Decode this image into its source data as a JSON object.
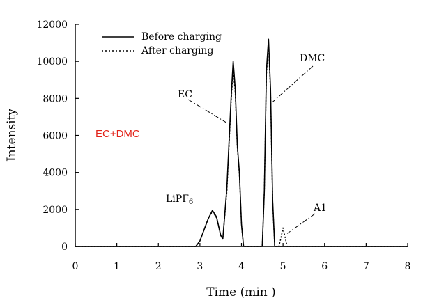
{
  "chart_data": {
    "type": "line",
    "xlabel": "Time (min )",
    "ylabel": "Intensity",
    "xlim": [
      0,
      8
    ],
    "ylim": [
      0,
      12000
    ],
    "xticks": [
      "0",
      "1",
      "2",
      "3",
      "4",
      "5",
      "6",
      "7",
      "8"
    ],
    "yticks": [
      "0",
      "2000",
      "4000",
      "6000",
      "8000",
      "10000",
      "12000"
    ],
    "grid": false,
    "legend_position": "top-left",
    "inset_text": "EC+DMC",
    "inset_color": "#e2231a",
    "series": [
      {
        "name": "Before charging",
        "style": "solid",
        "x": [
          0.0,
          2.9,
          3.0,
          3.1,
          3.2,
          3.3,
          3.4,
          3.5,
          3.55,
          3.65,
          3.75,
          3.8,
          3.85,
          3.9,
          3.95,
          4.0,
          4.05,
          4.1,
          4.5,
          4.55,
          4.6,
          4.65,
          4.7,
          4.75,
          4.8,
          5.0,
          8.0
        ],
        "y": [
          0,
          0,
          300,
          900,
          1500,
          1950,
          1600,
          600,
          400,
          3200,
          8000,
          10000,
          8500,
          5500,
          4000,
          1200,
          0,
          0,
          0,
          3000,
          9500,
          11200,
          8500,
          2500,
          0,
          0,
          0
        ]
      },
      {
        "name": "After charging",
        "style": "dotted",
        "x": [
          0.0,
          2.9,
          3.0,
          3.1,
          3.2,
          3.3,
          3.4,
          3.5,
          3.55,
          3.65,
          3.75,
          3.8,
          3.85,
          3.9,
          3.95,
          4.0,
          4.05,
          4.1,
          4.5,
          4.55,
          4.6,
          4.65,
          4.7,
          4.75,
          4.8,
          4.9,
          4.95,
          5.0,
          5.05,
          5.1,
          5.2,
          8.0
        ],
        "y": [
          0,
          0,
          300,
          900,
          1500,
          1900,
          1550,
          600,
          400,
          3000,
          7800,
          9600,
          8300,
          5400,
          3900,
          1200,
          0,
          0,
          0,
          3000,
          9300,
          11000,
          8300,
          2400,
          0,
          0,
          450,
          1000,
          500,
          0,
          0,
          0
        ]
      }
    ],
    "annotations": [
      {
        "text": "EC",
        "x": 3.8,
        "y": 6700
      },
      {
        "text": "DMC",
        "x": 4.68,
        "y": 7800
      },
      {
        "text": "LiPF6",
        "x": 3.3,
        "y": 1950
      },
      {
        "text": "A1",
        "x": 5.0,
        "y": 700
      }
    ]
  }
}
